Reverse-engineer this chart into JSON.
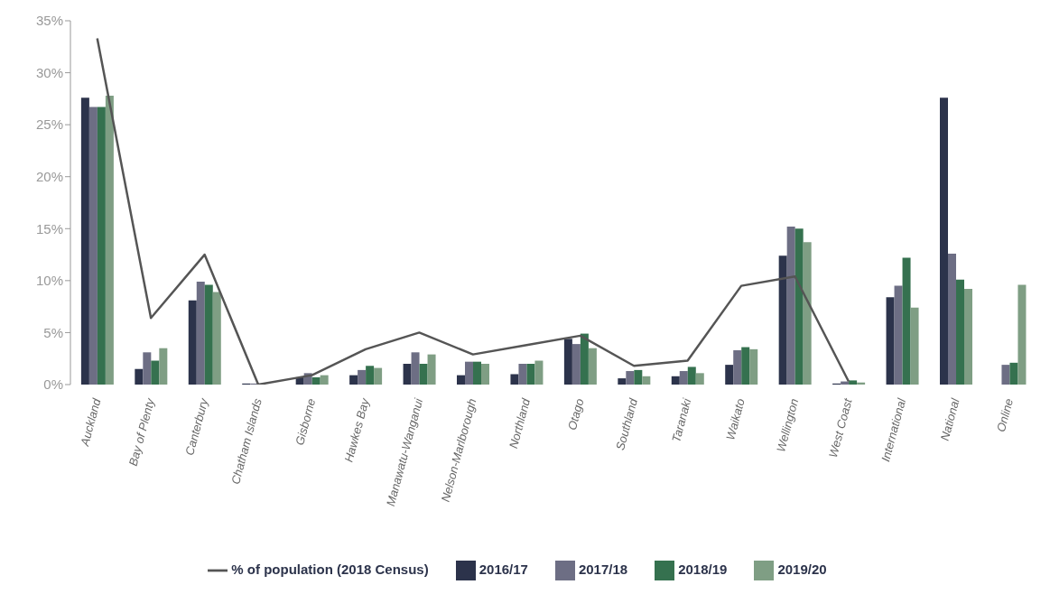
{
  "chart_data": {
    "type": "bar",
    "categories": [
      "Auckland",
      "Bay of Plenty",
      "Canterbury",
      "Chatham Islands",
      "Gisborne",
      "Hawkes Bay",
      "Manawatu-Wanganui",
      "Nelson-Marlborough",
      "Northland",
      "Otago",
      "Southland",
      "Taranaki",
      "Waikato",
      "Wellington",
      "West Coast",
      "International",
      "National",
      "Online"
    ],
    "series": [
      {
        "name": "2016/17",
        "color": "#2c334b",
        "values": [
          27.6,
          1.5,
          8.1,
          0.1,
          0.7,
          0.9,
          2.0,
          0.9,
          1.0,
          4.4,
          0.6,
          0.8,
          1.9,
          12.4,
          0.1,
          8.4,
          27.6,
          null
        ]
      },
      {
        "name": "2017/18",
        "color": "#6d6e84",
        "values": [
          26.7,
          3.1,
          9.9,
          0.1,
          1.1,
          1.4,
          3.1,
          2.2,
          2.0,
          3.9,
          1.3,
          1.3,
          3.3,
          15.2,
          0.3,
          9.5,
          12.6,
          1.9
        ]
      },
      {
        "name": "2018/19",
        "color": "#35714f",
        "values": [
          26.7,
          2.3,
          9.6,
          null,
          0.7,
          1.8,
          2.0,
          2.2,
          2.0,
          4.9,
          1.4,
          1.7,
          3.6,
          15.0,
          0.4,
          12.2,
          10.1,
          2.1
        ]
      },
      {
        "name": "2019/20",
        "color": "#7f9e84",
        "values": [
          27.8,
          3.5,
          8.9,
          null,
          0.9,
          1.6,
          2.9,
          2.0,
          2.3,
          3.5,
          0.8,
          1.1,
          3.4,
          13.7,
          0.2,
          7.4,
          9.2,
          9.6
        ]
      },
      {
        "name": "% of population (2018 Census)",
        "type": "line",
        "color": "#555555",
        "values": [
          33.3,
          6.4,
          12.5,
          0.0,
          0.9,
          3.4,
          5.0,
          2.9,
          3.8,
          4.7,
          1.8,
          2.3,
          9.5,
          10.4,
          0.3,
          null,
          null,
          null
        ]
      }
    ],
    "ylim": [
      0,
      35
    ],
    "yticks": [
      {
        "value": 0,
        "label": "0%"
      },
      {
        "value": 5,
        "label": "5%"
      },
      {
        "value": 10,
        "label": "10%"
      },
      {
        "value": 15,
        "label": "15%"
      },
      {
        "value": 20,
        "label": "20%"
      },
      {
        "value": 25,
        "label": "25%"
      },
      {
        "value": 30,
        "label": "30%"
      },
      {
        "value": 35,
        "label": "35%"
      }
    ],
    "legend": "bottom",
    "marker": "none",
    "line_style": "solid"
  }
}
